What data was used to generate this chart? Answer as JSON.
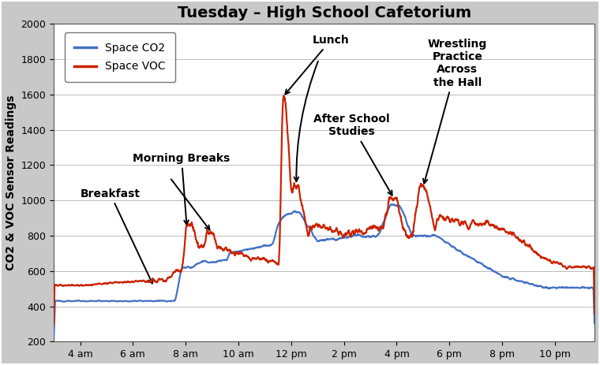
{
  "title": "Tuesday – High School Cafetorium",
  "ylabel": "CO2 & VOC Sensor Readings",
  "ylim": [
    200,
    2000
  ],
  "yticks": [
    200,
    400,
    600,
    800,
    1000,
    1200,
    1400,
    1600,
    1800,
    2000
  ],
  "xtick_positions": [
    4,
    6,
    8,
    10,
    12,
    14,
    16,
    18,
    20,
    22
  ],
  "xtick_labels": [
    "4 am",
    "6 am",
    "8 am",
    "10 am",
    "12 pm",
    "2 pm",
    "4 pm",
    "6 pm",
    "8 pm",
    "10 pm"
  ],
  "xlim": [
    3.0,
    23.5
  ],
  "co2_color": "#4472C4",
  "voc_color": "#CC2200",
  "background_color": "#FFFFFF",
  "outer_background": "#C8C8C8",
  "legend_labels": [
    "Space CO2",
    "Space VOC"
  ],
  "title_fontsize": 14,
  "axis_label_fontsize": 10,
  "tick_fontsize": 9,
  "legend_fontsize": 10,
  "annot_fontsize": 10
}
